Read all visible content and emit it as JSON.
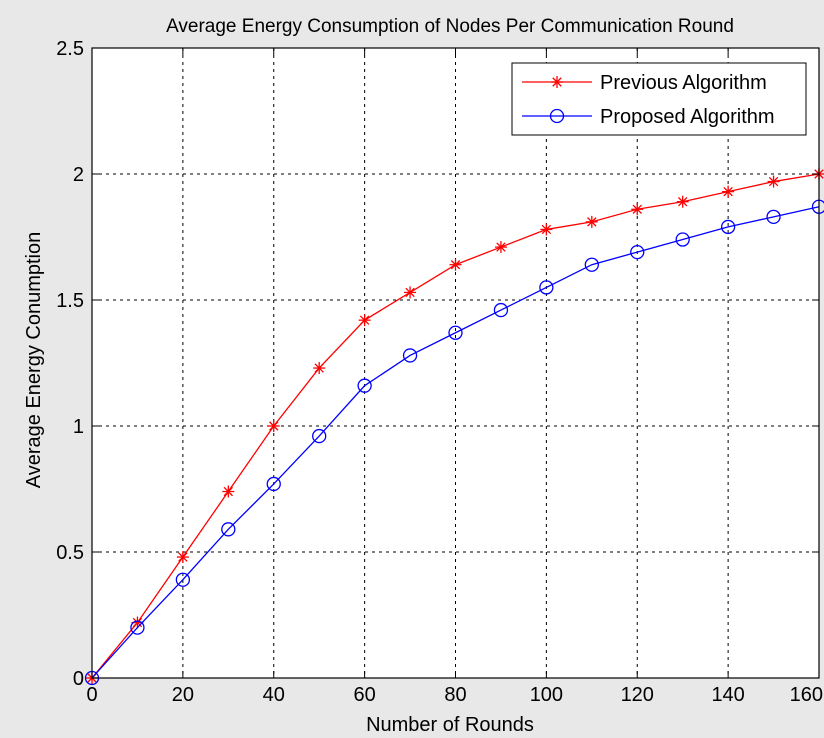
{
  "chart_data": {
    "type": "line",
    "title": "Average Energy Consumption of Nodes Per Communication Round",
    "xlabel": "Number of Rounds",
    "ylabel": "Average Energy Conumption",
    "xlim": [
      0,
      160
    ],
    "ylim": [
      0,
      2.5
    ],
    "xticks": [
      0,
      20,
      40,
      60,
      80,
      100,
      120,
      140,
      160
    ],
    "yticks": [
      0,
      0.5,
      1,
      1.5,
      2,
      2.5
    ],
    "xtick_labels": [
      "0",
      "20",
      "40",
      "60",
      "80",
      "100",
      "120",
      "140",
      "160"
    ],
    "ytick_labels": [
      "0",
      "0.5",
      "1",
      "1.5",
      "2",
      "2.5"
    ],
    "grid": true,
    "legend_position": "top-right",
    "x": [
      0,
      10,
      20,
      30,
      40,
      50,
      60,
      70,
      80,
      90,
      100,
      110,
      120,
      130,
      140,
      150,
      160
    ],
    "series": [
      {
        "name": "Previous Algorithm",
        "color": "#ff0000",
        "marker": "asterisk",
        "values": [
          0,
          0.22,
          0.48,
          0.74,
          1.0,
          1.23,
          1.42,
          1.53,
          1.64,
          1.71,
          1.78,
          1.81,
          1.86,
          1.89,
          1.93,
          1.97,
          2.0
        ]
      },
      {
        "name": "Proposed Algorithm",
        "color": "#0000ff",
        "marker": "circle",
        "values": [
          0,
          0.2,
          0.39,
          0.59,
          0.77,
          0.96,
          1.16,
          1.28,
          1.37,
          1.46,
          1.55,
          1.64,
          1.69,
          1.74,
          1.79,
          1.83,
          1.87
        ]
      }
    ]
  }
}
